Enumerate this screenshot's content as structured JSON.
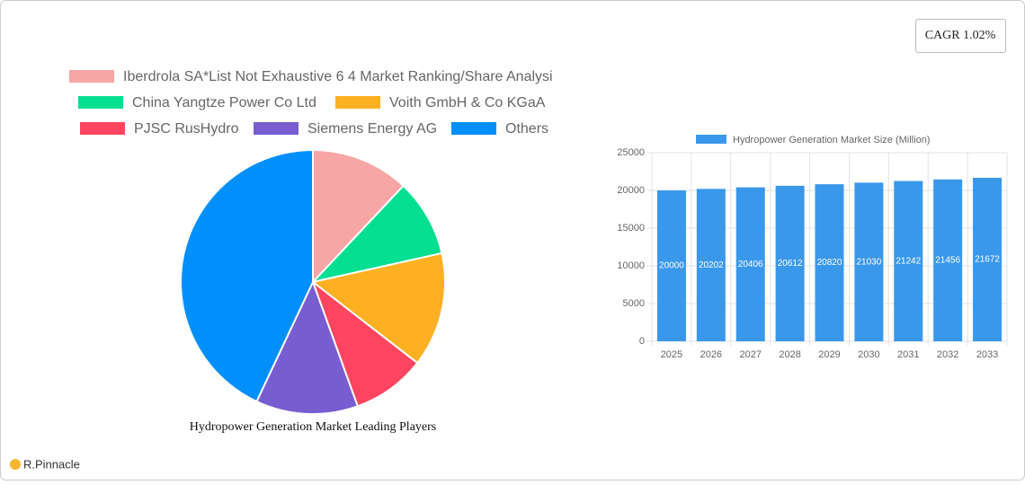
{
  "chart_data": [
    {
      "type": "pie",
      "title": "Hydropower Generation Market Leading Players",
      "categories": [
        "Iberdrola SA*List Not Exhaustive 6 4 Market Ranking/Share Analysi",
        "China Yangtze Power Co  Ltd",
        "Voith GmbH & Co  KGaA",
        "PJSC RusHydro",
        "Siemens Energy AG",
        "Others"
      ],
      "values": [
        12,
        9.5,
        14,
        9,
        12.5,
        43
      ],
      "colors": [
        "#f8a5a5",
        "#05df91",
        "#fdb022",
        "#ff4560",
        "#775dd0",
        "#008ffb"
      ]
    },
    {
      "type": "bar",
      "categories": [
        "2025",
        "2026",
        "2027",
        "2028",
        "2029",
        "2030",
        "2031",
        "2032",
        "2033"
      ],
      "series": [
        {
          "name": "Hydropower Generation Market Size (Million)",
          "color": "#3a98eb",
          "values": [
            20000,
            20202,
            20406,
            20612,
            20820,
            21030,
            21242,
            21456,
            21672
          ]
        }
      ],
      "ylim": [
        0,
        25000
      ],
      "yticks": [
        0,
        5000,
        10000,
        15000,
        20000,
        25000
      ],
      "grid": true
    }
  ],
  "cagr": "CAGR 1.02%",
  "brand": "R.Pinnacle"
}
